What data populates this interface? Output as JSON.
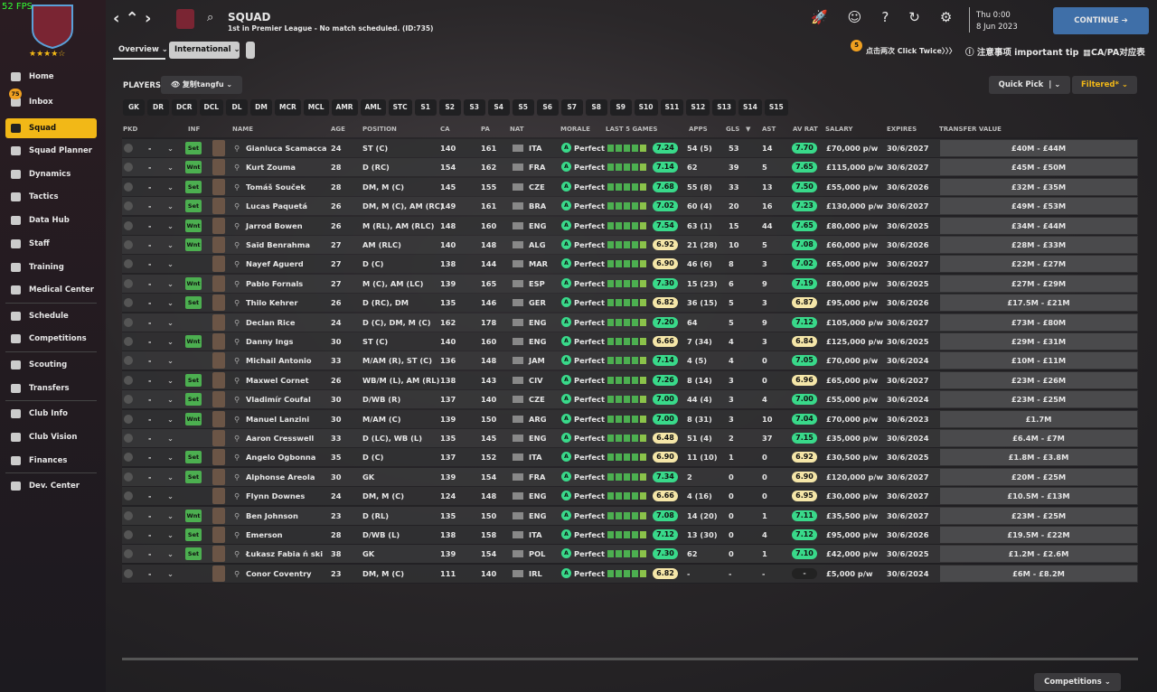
{
  "fps": "52 FPS",
  "sidebar": {
    "inbox_badge": "75",
    "items": [
      "Home",
      "Inbox",
      "Squad",
      "Squad Planner",
      "Dynamics",
      "Tactics",
      "Data Hub",
      "Staff",
      "Training",
      "Medical Center",
      "Schedule",
      "Competitions",
      "Scouting",
      "Transfers",
      "Club Info",
      "Club Vision",
      "Finances",
      "Dev. Center"
    ]
  },
  "header": {
    "title": "SQUAD",
    "subtitle": "1st in Premier League - No match scheduled. (ID:735)",
    "day": "Thu 0:00",
    "date": "8 Jun 2023",
    "continue": "CONTINUE"
  },
  "tabs": [
    "Overview",
    "International"
  ],
  "toolbar": {
    "badge": "5",
    "click_twice": "点击两次 Click Twice〉〉〉",
    "tip": "注意事项 important tip",
    "capa": "CA/PA对应表"
  },
  "players_label": "PLAYERS",
  "view": "复制tangfu",
  "quick_pick": "Quick Pick",
  "filtered": "Filtered*",
  "position_filters": [
    "GK",
    "DR",
    "DCR",
    "DCL",
    "DL",
    "DM",
    "MCR",
    "MCL",
    "AMR",
    "AML",
    "STC",
    "S1",
    "S2",
    "S3",
    "S4",
    "S5",
    "S6",
    "S7",
    "S8",
    "S9",
    "S10",
    "S11",
    "S12",
    "S13",
    "S14",
    "S15"
  ],
  "table": {
    "columns": [
      "PKD",
      "INF",
      "NAME",
      "AGE",
      "POSITION",
      "CA",
      "PA",
      "NAT",
      "MORALE",
      "LAST 5 GAMES",
      "APPS",
      "GLS",
      "AST",
      "AV RAT",
      "SALARY",
      "EXPIRES",
      "TRANSFER VALUE"
    ],
    "rows": [
      {
        "pick": "-",
        "inf": "Set",
        "name": "Gianluca Scamacca",
        "age": "24",
        "position": "ST (C)",
        "ca": "140",
        "pa": "161",
        "nat": "ITA",
        "morale": "Perfect",
        "form": "7.24",
        "apps": "54 (5)",
        "gls": "53",
        "ast": "14",
        "avrat": "7.70",
        "salary": "£70,000 p/w",
        "expires": "30/6/2027",
        "value": "£40M - £44M"
      },
      {
        "pick": "-",
        "inf": "Wnt",
        "name": "Kurt Zouma",
        "age": "28",
        "position": "D (RC)",
        "ca": "154",
        "pa": "162",
        "nat": "FRA",
        "morale": "Perfect",
        "form": "7.14",
        "apps": "62",
        "gls": "39",
        "ast": "5",
        "avrat": "7.65",
        "salary": "£115,000 p/w",
        "expires": "30/6/2027",
        "value": "£45M - £50M"
      },
      {
        "pick": "-",
        "inf": "Set",
        "name": "Tomáš Souček",
        "age": "28",
        "position": "DM, M (C)",
        "ca": "145",
        "pa": "155",
        "nat": "CZE",
        "morale": "Perfect",
        "form": "7.68",
        "apps": "55 (8)",
        "gls": "33",
        "ast": "13",
        "avrat": "7.50",
        "salary": "£55,000 p/w",
        "expires": "30/6/2026",
        "value": "£32M - £35M"
      },
      {
        "pick": "-",
        "inf": "Set",
        "name": "Lucas Paquetá",
        "age": "26",
        "position": "DM, M (C), AM (RC)",
        "ca": "149",
        "pa": "161",
        "nat": "BRA",
        "morale": "Perfect",
        "form": "7.02",
        "apps": "60 (4)",
        "gls": "20",
        "ast": "16",
        "avrat": "7.23",
        "salary": "£130,000 p/w",
        "expires": "30/6/2027",
        "value": "£49M - £53M"
      },
      {
        "pick": "-",
        "inf": "Wnt",
        "name": "Jarrod Bowen",
        "age": "26",
        "position": "M (RL), AM (RLC)",
        "ca": "148",
        "pa": "160",
        "nat": "ENG",
        "morale": "Perfect",
        "form": "7.54",
        "apps": "63 (1)",
        "gls": "15",
        "ast": "44",
        "avrat": "7.65",
        "salary": "£80,000 p/w",
        "expires": "30/6/2025",
        "value": "£34M - £44M"
      },
      {
        "pick": "-",
        "inf": "Wnt",
        "name": "Saïd Benrahma",
        "age": "27",
        "position": "AM (RLC)",
        "ca": "140",
        "pa": "148",
        "nat": "ALG",
        "morale": "Perfect",
        "form": "6.92",
        "apps": "21 (28)",
        "gls": "10",
        "ast": "5",
        "avrat": "7.08",
        "salary": "£60,000 p/w",
        "expires": "30/6/2026",
        "value": "£28M - £33M"
      },
      {
        "pick": "-",
        "name": "Nayef Aguerd",
        "age": "27",
        "position": "D (C)",
        "ca": "138",
        "pa": "144",
        "nat": "MAR",
        "morale": "Perfect",
        "form": "6.90",
        "apps": "46 (6)",
        "gls": "8",
        "ast": "3",
        "avrat": "7.02",
        "salary": "£65,000 p/w",
        "expires": "30/6/2027",
        "value": "£22M - £27M"
      },
      {
        "pick": "-",
        "inf": "Wnt",
        "name": "Pablo Fornals",
        "age": "27",
        "position": "M (C), AM (LC)",
        "ca": "139",
        "pa": "165",
        "nat": "ESP",
        "morale": "Perfect",
        "form": "7.30",
        "apps": "15 (23)",
        "gls": "6",
        "ast": "9",
        "avrat": "7.19",
        "salary": "£80,000 p/w",
        "expires": "30/6/2025",
        "value": "£27M - £29M"
      },
      {
        "pick": "-",
        "inf": "Set",
        "name": "Thilo Kehrer",
        "age": "26",
        "position": "D (RC), DM",
        "ca": "135",
        "pa": "146",
        "nat": "GER",
        "morale": "Perfect",
        "form": "6.82",
        "apps": "36 (15)",
        "gls": "5",
        "ast": "3",
        "avrat": "6.87",
        "salary": "£95,000 p/w",
        "expires": "30/6/2026",
        "value": "£17.5M - £21M"
      },
      {
        "pick": "-",
        "name": "Declan Rice",
        "age": "24",
        "position": "D (C), DM, M (C)",
        "ca": "162",
        "pa": "178",
        "nat": "ENG",
        "morale": "Perfect",
        "form": "7.20",
        "apps": "64",
        "gls": "5",
        "ast": "9",
        "avrat": "7.12",
        "salary": "£105,000 p/w",
        "expires": "30/6/2027",
        "value": "£73M - £80M"
      },
      {
        "pick": "-",
        "inf": "Wnt",
        "name": "Danny Ings",
        "age": "30",
        "position": "ST (C)",
        "ca": "140",
        "pa": "160",
        "nat": "ENG",
        "morale": "Perfect",
        "form": "6.66",
        "apps": "7 (34)",
        "gls": "4",
        "ast": "3",
        "avrat": "6.84",
        "salary": "£125,000 p/w",
        "expires": "30/6/2025",
        "value": "£29M - £31M"
      },
      {
        "pick": "-",
        "name": "Michail Antonio",
        "age": "33",
        "position": "M/AM (R), ST (C)",
        "ca": "136",
        "pa": "148",
        "nat": "JAM",
        "morale": "Perfect",
        "form": "7.14",
        "apps": "4 (5)",
        "gls": "4",
        "ast": "0",
        "avrat": "7.05",
        "salary": "£70,000 p/w",
        "expires": "30/6/2024",
        "value": "£10M - £11M"
      },
      {
        "pick": "-",
        "inf": "Set",
        "name": "Maxwel Cornet",
        "age": "26",
        "position": "WB/M (L), AM (RL)",
        "ca": "138",
        "pa": "143",
        "nat": "CIV",
        "morale": "Perfect",
        "form": "7.26",
        "apps": "8 (14)",
        "gls": "3",
        "ast": "0",
        "avrat": "6.96",
        "salary": "£65,000 p/w",
        "expires": "30/6/2027",
        "value": "£23M - £26M"
      },
      {
        "pick": "-",
        "inf": "Set",
        "name": "Vladimír Coufal",
        "age": "30",
        "position": "D/WB (R)",
        "ca": "137",
        "pa": "140",
        "nat": "CZE",
        "morale": "Perfect",
        "form": "7.00",
        "apps": "44 (4)",
        "gls": "3",
        "ast": "4",
        "avrat": "7.00",
        "salary": "£55,000 p/w",
        "expires": "30/6/2024",
        "value": "£23M - £25M"
      },
      {
        "pick": "-",
        "inf": "Wnt",
        "name": "Manuel Lanzini",
        "age": "30",
        "position": "M/AM (C)",
        "ca": "139",
        "pa": "150",
        "nat": "ARG",
        "morale": "Perfect",
        "form": "7.00",
        "apps": "8 (31)",
        "gls": "3",
        "ast": "10",
        "avrat": "7.04",
        "salary": "£70,000 p/w",
        "expires": "30/6/2023",
        "value": "£1.7M"
      },
      {
        "pick": "-",
        "name": "Aaron Cresswell",
        "age": "33",
        "position": "D (LC), WB (L)",
        "ca": "135",
        "pa": "145",
        "nat": "ENG",
        "morale": "Perfect",
        "form": "6.48",
        "apps": "51 (4)",
        "gls": "2",
        "ast": "37",
        "avrat": "7.15",
        "salary": "£35,000 p/w",
        "expires": "30/6/2024",
        "value": "£6.4M - £7M"
      },
      {
        "pick": "-",
        "inf": "Set",
        "name": "Angelo Ogbonna",
        "age": "35",
        "position": "D (C)",
        "ca": "137",
        "pa": "152",
        "nat": "ITA",
        "morale": "Perfect",
        "form": "6.90",
        "apps": "11 (10)",
        "gls": "1",
        "ast": "0",
        "avrat": "6.92",
        "salary": "£30,500 p/w",
        "expires": "30/6/2025",
        "value": "£1.8M - £3.8M"
      },
      {
        "pick": "-",
        "inf": "Set",
        "name": "Alphonse Areola",
        "age": "30",
        "position": "GK",
        "ca": "139",
        "pa": "154",
        "nat": "FRA",
        "morale": "Perfect",
        "form": "7.34",
        "apps": "2",
        "gls": "0",
        "ast": "0",
        "avrat": "6.90",
        "salary": "£120,000 p/w",
        "expires": "30/6/2027",
        "value": "£20M - £25M"
      },
      {
        "pick": "-",
        "name": "Flynn Downes",
        "age": "24",
        "position": "DM, M (C)",
        "ca": "124",
        "pa": "148",
        "nat": "ENG",
        "morale": "Perfect",
        "form": "6.66",
        "apps": "4 (16)",
        "gls": "0",
        "ast": "0",
        "avrat": "6.95",
        "salary": "£30,000 p/w",
        "expires": "30/6/2027",
        "value": "£10.5M - £13M"
      },
      {
        "pick": "-",
        "inf": "Wnt",
        "name": "Ben Johnson",
        "age": "23",
        "position": "D (RL)",
        "ca": "135",
        "pa": "150",
        "nat": "ENG",
        "morale": "Perfect",
        "form": "7.08",
        "apps": "14 (20)",
        "gls": "0",
        "ast": "1",
        "avrat": "7.11",
        "salary": "£35,500 p/w",
        "expires": "30/6/2027",
        "value": "£23M - £25M"
      },
      {
        "pick": "-",
        "inf": "Set",
        "name": "Emerson",
        "age": "28",
        "position": "D/WB (L)",
        "ca": "138",
        "pa": "158",
        "nat": "ITA",
        "morale": "Perfect",
        "form": "7.12",
        "apps": "13 (30)",
        "gls": "0",
        "ast": "4",
        "avrat": "7.12",
        "salary": "£95,000 p/w",
        "expires": "30/6/2026",
        "value": "£19.5M - £22M"
      },
      {
        "pick": "-",
        "inf": "Set",
        "name": "Łukasz Fabia ń ski",
        "age": "38",
        "position": "GK",
        "ca": "139",
        "pa": "154",
        "nat": "POL",
        "morale": "Perfect",
        "form": "7.30",
        "apps": "62",
        "gls": "0",
        "ast": "1",
        "avrat": "7.10",
        "salary": "£42,000 p/w",
        "expires": "30/6/2025",
        "value": "£1.2M - £2.6M"
      },
      {
        "pick": "-",
        "name": "Conor Coventry",
        "age": "23",
        "position": "DM, M (C)",
        "ca": "111",
        "pa": "140",
        "nat": "IRL",
        "morale": "Perfect",
        "form": "6.82",
        "apps": "-",
        "gls": "-",
        "ast": "-",
        "avrat": "-",
        "salary": "£5,000 p/w",
        "expires": "30/6/2024",
        "value": "£6M - £8.2M"
      }
    ]
  },
  "footer": {
    "competitions": "Competitions"
  }
}
